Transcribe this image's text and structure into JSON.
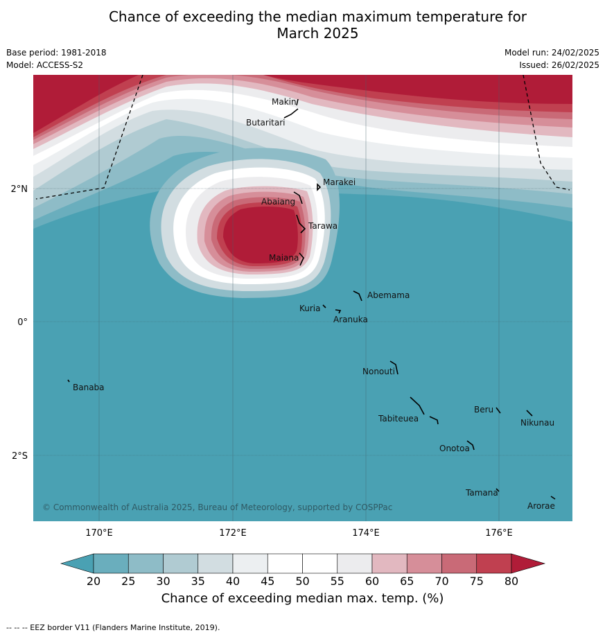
{
  "title_line1": "Chance of exceeding the median maximum temperature for",
  "title_line2": "March 2025",
  "meta_left": {
    "base_period": "Base period: 1981-2018",
    "model": "Model: ACCESS-S2"
  },
  "meta_right": {
    "model_run": "Model run: 24/02/2025",
    "issued": "Issued: 26/02/2025"
  },
  "map": {
    "lon_labels": [
      "170°E",
      "172°E",
      "174°E",
      "176°E"
    ],
    "lat_labels": [
      "2°N",
      "0°",
      "2°S"
    ],
    "copyright": "© Commonwealth of Australia 2025, Bureau of Meteorology, supported by COSPPac",
    "islands": [
      "Makin",
      "Butaritari",
      "Marakei",
      "Abaiang",
      "Tarawa",
      "Maiana",
      "Abemama",
      "Kuria",
      "Aranuka",
      "Nonouti",
      "Banaba",
      "Beru",
      "Tabiteuea",
      "Nikunau",
      "Onotoa",
      "Tamana",
      "Arorae"
    ]
  },
  "colorbar": {
    "ticks": [
      "20",
      "25",
      "30",
      "35",
      "40",
      "45",
      "50",
      "55",
      "60",
      "65",
      "70",
      "75",
      "80"
    ],
    "colors": [
      "#4aa1b3",
      "#6aaebd",
      "#8ebcc7",
      "#b0cbd2",
      "#d2dde1",
      "#eceff1",
      "#ffffff",
      "#ffffff",
      "#ececee",
      "#e2b8c0",
      "#d68e99",
      "#c96a77",
      "#c04050",
      "#b01c38"
    ],
    "title": "Chance of exceeding median max. temp. (%)"
  },
  "footnote": "--  --  -- EEZ border V11 (Flanders Marine Institute, 2019)."
}
